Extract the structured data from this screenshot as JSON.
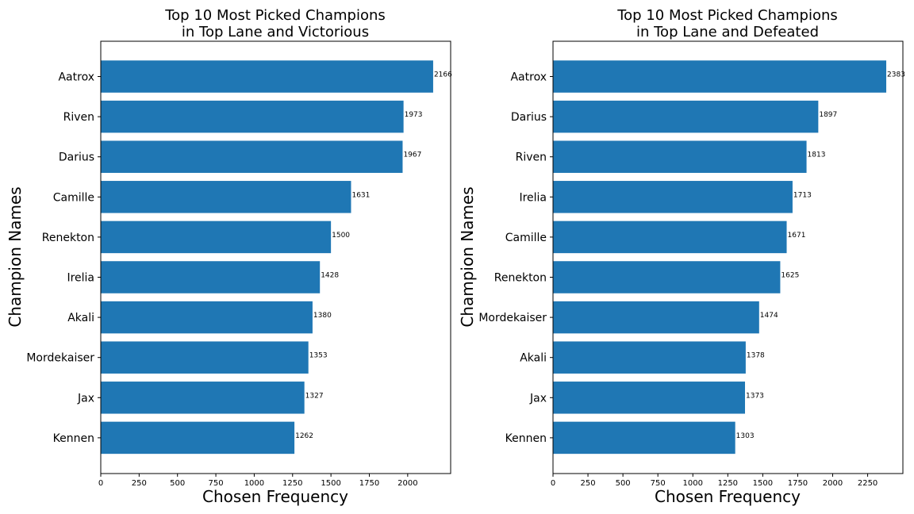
{
  "colors": {
    "bar": "#1f77b4",
    "axis": "#000000",
    "background": "#ffffff"
  },
  "chart_data": [
    {
      "type": "bar",
      "orientation": "horizontal",
      "title_line1": "Top 10 Most Picked Champions",
      "title_line2": "in Top Lane and Victorious",
      "xlabel": "Chosen Frequency",
      "ylabel": "Champion Names",
      "xlim": [
        0,
        2280
      ],
      "xticks": [
        0,
        250,
        500,
        750,
        1000,
        1250,
        1500,
        1750,
        2000
      ],
      "grid": false,
      "categories": [
        "Aatrox",
        "Riven",
        "Darius",
        "Camille",
        "Renekton",
        "Irelia",
        "Akali",
        "Mordekaiser",
        "Jax",
        "Kennen"
      ],
      "values": [
        2166,
        1973,
        1967,
        1631,
        1500,
        1428,
        1380,
        1353,
        1327,
        1262
      ]
    },
    {
      "type": "bar",
      "orientation": "horizontal",
      "title_line1": "Top 10 Most Picked Champions",
      "title_line2": "in Top Lane and Defeated",
      "xlabel": "Chosen Frequency",
      "ylabel": "Champion Names",
      "xlim": [
        0,
        2502
      ],
      "xticks": [
        0,
        250,
        500,
        750,
        1000,
        1250,
        1500,
        1750,
        2000,
        2250
      ],
      "grid": false,
      "categories": [
        "Aatrox",
        "Darius",
        "Riven",
        "Irelia",
        "Camille",
        "Renekton",
        "Mordekaiser",
        "Akali",
        "Jax",
        "Kennen"
      ],
      "values": [
        2383,
        1897,
        1813,
        1713,
        1671,
        1625,
        1474,
        1378,
        1373,
        1303
      ]
    }
  ]
}
